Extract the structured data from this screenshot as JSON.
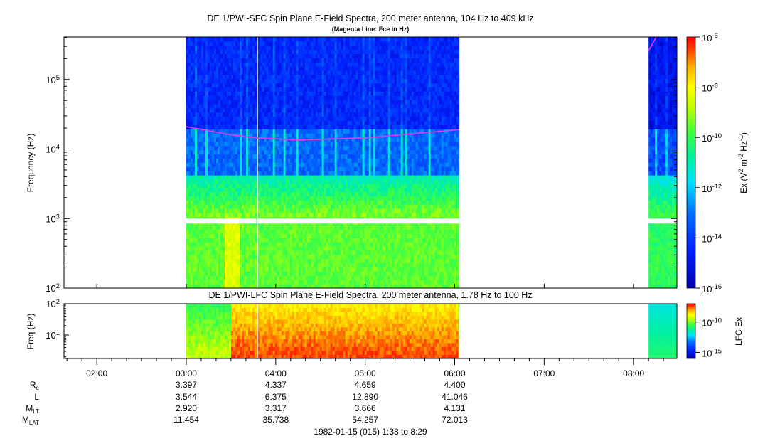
{
  "chart_data": [
    {
      "type": "heatmap",
      "title": "DE 1/PWI-SFC  Spin Plane E-Field Spectra, 200 meter antenna, 104 Hz to 409 kHz",
      "subtitle": "(Magenta Line: Fce in Hz)",
      "ylabel": "Frequency (Hz)",
      "yscale": "log",
      "ylim": [
        100,
        409000
      ],
      "yticks": [
        {
          "value": 100,
          "base": "10",
          "exp": "2"
        },
        {
          "value": 1000,
          "base": "10",
          "exp": "3"
        },
        {
          "value": 10000,
          "base": "10",
          "exp": "4"
        },
        {
          "value": 100000,
          "base": "10",
          "exp": "5"
        }
      ],
      "colorbar": {
        "label_parts": [
          "Ex (V",
          "2",
          " m",
          "-2",
          " Hz",
          "-1",
          ")"
        ],
        "scale": "log",
        "range": [
          1e-16,
          1e-06
        ],
        "ticks": [
          {
            "value": 1e-06,
            "base": "10",
            "exp": "-6"
          },
          {
            "value": 1e-08,
            "base": "10",
            "exp": "-8"
          },
          {
            "value": 1e-10,
            "base": "10",
            "exp": "-10"
          },
          {
            "value": 1e-12,
            "base": "10",
            "exp": "-12"
          },
          {
            "value": 1e-14,
            "base": "10",
            "exp": "-14"
          },
          {
            "value": 1e-16,
            "base": "10",
            "exp": "-16"
          }
        ]
      },
      "data_intervals": [
        [
          "03:00",
          "03:47"
        ],
        [
          "03:48",
          "06:03"
        ],
        [
          "08:10",
          "08:29"
        ]
      ],
      "line_series": {
        "color": "#e040e0",
        "points": [
          [
            "03:00",
            21000
          ],
          [
            "03:30",
            16000
          ],
          [
            "03:48",
            14500
          ],
          [
            "04:15",
            13500
          ],
          [
            "05:00",
            14500
          ],
          [
            "05:30",
            16500
          ],
          [
            "06:03",
            19000
          ],
          [
            "08:10",
            260000
          ],
          [
            "08:15",
            400000
          ]
        ]
      }
    },
    {
      "type": "heatmap",
      "title": "DE 1/PWI-LFC  Spin Plane E-Field Spectra, 200 meter antenna, 1.78 Hz to 100 Hz",
      "ylabel": "Freq (Hz)",
      "yscale": "log",
      "ylim": [
        1.78,
        100
      ],
      "yticks": [
        {
          "value": 10,
          "base": "10",
          "exp": "1"
        },
        {
          "value": 100,
          "base": "10",
          "exp": "2"
        }
      ],
      "colorbar": {
        "label": "LFC Ex",
        "scale": "log",
        "range": [
          1e-16,
          1e-07
        ],
        "ticks": [
          {
            "value": 1e-10,
            "base": "10",
            "exp": "-10"
          },
          {
            "value": 1e-15,
            "base": "10",
            "exp": "-15"
          }
        ]
      },
      "data_intervals": [
        [
          "03:00",
          "03:47"
        ],
        [
          "03:48",
          "06:03"
        ],
        [
          "08:10",
          "08:29"
        ]
      ]
    }
  ],
  "time_axis": {
    "start": "01:38",
    "end": "08:29",
    "ticks": [
      "02:00",
      "03:00",
      "04:00",
      "05:00",
      "06:00",
      "07:00",
      "08:00"
    ]
  },
  "ephemeris": {
    "rows": [
      {
        "base": "R",
        "sub": "e",
        "values": [
          "3.397",
          "4.337",
          "4.659",
          "4.400"
        ]
      },
      {
        "base": "L",
        "sub": "",
        "values": [
          "3.544",
          "6.375",
          "12.890",
          "41.046"
        ]
      },
      {
        "base": "M",
        "sub": "LT",
        "values": [
          "2.920",
          "3.317",
          "3.666",
          "4.131"
        ]
      },
      {
        "base": "M",
        "sub": "LAT",
        "values": [
          "11.454",
          "35.738",
          "54.257",
          "72.013"
        ]
      }
    ],
    "times": [
      "03:00",
      "04:00",
      "05:00",
      "06:00"
    ]
  },
  "footer": "1982-01-15 (015) 1:38 to 8:29"
}
